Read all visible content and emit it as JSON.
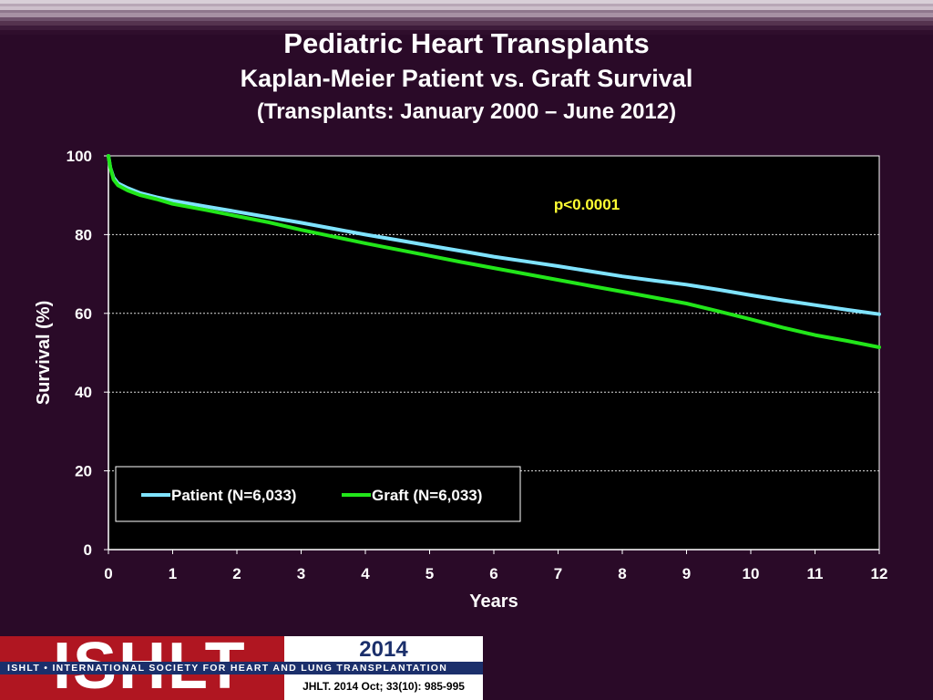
{
  "title": "Pediatric Heart Transplants",
  "subtitle": "Kaplan-Meier Patient vs. Graft Survival",
  "subtitle2": "(Transplants: January 2000 – June 2012)",
  "footer": {
    "logo_text": "ISHLT",
    "org_name": "ISHLT • INTERNATIONAL SOCIETY FOR HEART AND LUNG TRANSPLANTATION",
    "year": "2014",
    "citation": "JHLT. 2014 Oct; 33(10): 985-995"
  },
  "chart_data": {
    "type": "line",
    "xlabel": "Years",
    "ylabel": "Survival (%)",
    "xlim": [
      0,
      12
    ],
    "ylim": [
      0,
      100
    ],
    "xticks": [
      0,
      1,
      2,
      3,
      4,
      5,
      6,
      7,
      8,
      9,
      10,
      11,
      12
    ],
    "yticks": [
      0,
      20,
      40,
      60,
      80,
      100
    ],
    "grid": "horizontal",
    "legend_position": "bottom-left",
    "annotation": "p<0.0001",
    "series": [
      {
        "name": "Patient (N=6,033)",
        "color": "#7fe3ff",
        "x": [
          0,
          0.03,
          0.08,
          0.15,
          0.3,
          0.5,
          0.75,
          1,
          1.5,
          2,
          2.5,
          3,
          3.5,
          4,
          4.5,
          5,
          5.5,
          6,
          6.5,
          7,
          7.5,
          8,
          8.5,
          9,
          9.5,
          10,
          10.5,
          11,
          11.5,
          12
        ],
        "y": [
          100,
          97,
          94.5,
          93,
          91.8,
          90.5,
          89.5,
          88.6,
          87.2,
          85.8,
          84.4,
          83,
          81.5,
          80,
          78.6,
          77.2,
          75.8,
          74.4,
          73.2,
          72,
          70.7,
          69.4,
          68.3,
          67.3,
          66,
          64.6,
          63.3,
          62.1,
          60.9,
          59.8
        ]
      },
      {
        "name": "Graft (N=6,033)",
        "color": "#22e61a",
        "x": [
          0,
          0.03,
          0.08,
          0.15,
          0.3,
          0.5,
          0.75,
          1,
          1.5,
          2,
          2.5,
          3,
          3.5,
          4,
          4.5,
          5,
          5.5,
          6,
          6.5,
          7,
          7.5,
          8,
          8.5,
          9,
          9.5,
          10,
          10.5,
          11,
          11.5,
          12
        ],
        "y": [
          100,
          97,
          94,
          92.5,
          91.2,
          90,
          89,
          87.8,
          86.3,
          84.7,
          83.1,
          81.2,
          79.5,
          77.8,
          76.2,
          74.6,
          73,
          71.5,
          70,
          68.5,
          67,
          65.5,
          64,
          62.5,
          60.5,
          58.5,
          56.4,
          54.5,
          53,
          51.4
        ]
      }
    ]
  }
}
